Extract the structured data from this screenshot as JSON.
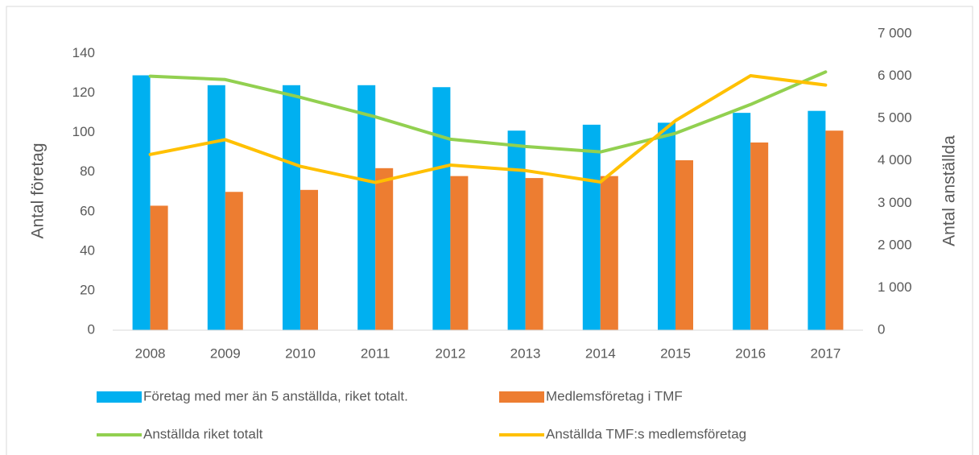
{
  "chart_data": {
    "type": "bar-line",
    "ylabel": "Antal företag",
    "y2label": "Antal anställda",
    "categories": [
      "2008",
      "2009",
      "2010",
      "2011",
      "2012",
      "2013",
      "2014",
      "2015",
      "2016",
      "2017"
    ],
    "series": [
      {
        "name": "Företag med mer än 5 anställda, riket totalt.",
        "type": "bar",
        "color": "#00b0f0",
        "values": [
          129,
          124,
          124,
          124,
          123,
          101,
          104,
          105,
          110,
          111
        ]
      },
      {
        "name": "Medlemsföretag i TMF",
        "type": "bar",
        "color": "#ed7d31",
        "values": [
          63,
          70,
          71,
          82,
          78,
          77,
          78,
          86,
          95,
          101
        ]
      },
      {
        "name": "Anställda riket totalt",
        "type": "line",
        "axis": "y2",
        "color": "#92d050",
        "values": [
          6000,
          5920,
          5500,
          5040,
          4510,
          4340,
          4210,
          4650,
          5330,
          6100
        ]
      },
      {
        "name": "Anställda TMF:s medlemsföretag",
        "type": "line",
        "axis": "y2",
        "color": "#ffc000",
        "values": [
          4150,
          4500,
          3870,
          3490,
          3900,
          3770,
          3500,
          4950,
          6010,
          5790
        ]
      }
    ],
    "ylim": [
      0,
      150
    ],
    "yticks": [
      0,
      20,
      40,
      60,
      80,
      100,
      120,
      140
    ],
    "y2lim": [
      0,
      7000
    ],
    "y2ticks": [
      0,
      {
        "value": 1000,
        "label": "1 000"
      },
      {
        "value": 2000,
        "label": "2 000"
      },
      {
        "value": 3000,
        "label": "3 000"
      },
      {
        "value": 4000,
        "label": "4 000"
      },
      {
        "value": 5000,
        "label": "5 000"
      },
      {
        "value": 6000,
        "label": "6 000"
      },
      {
        "value": 7000,
        "label": "7 000"
      }
    ],
    "grid": false
  }
}
